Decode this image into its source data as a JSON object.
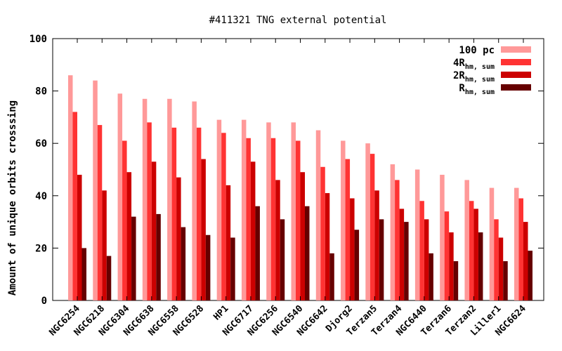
{
  "chart_data": {
    "type": "bar",
    "title": "#411321 TNG external potential",
    "xlabel": "",
    "ylabel": "Amount of unique orbits crosssing",
    "ylim": [
      0,
      100
    ],
    "yticks": [
      0,
      20,
      40,
      60,
      80,
      100
    ],
    "grid": false,
    "legend_position": "top-right",
    "categories": [
      "NGC6254",
      "NGC6218",
      "NGC6304",
      "NGC6638",
      "NGC6558",
      "NGC6528",
      "HP1",
      "NGC6717",
      "NGC6256",
      "NGC6540",
      "NGC6642",
      "Djorg2",
      "Terzan5",
      "Terzan4",
      "NGC6440",
      "Terzan6",
      "Terzan2",
      "Liller1",
      "NGC6624"
    ],
    "series": [
      {
        "name": "100 pc",
        "legend_main": "100 pc",
        "legend_sub": "",
        "color": "#ff9999",
        "values": [
          86,
          84,
          79,
          77,
          77,
          76,
          69,
          69,
          68,
          68,
          65,
          61,
          60,
          52,
          50,
          48,
          46,
          43,
          43
        ]
      },
      {
        "name": "4Rhm, sum",
        "legend_main": "4R",
        "legend_sub": "hm, sum",
        "color": "#ff3333",
        "values": [
          72,
          67,
          61,
          68,
          66,
          66,
          64,
          62,
          62,
          61,
          51,
          54,
          56,
          46,
          38,
          34,
          38,
          31,
          39
        ]
      },
      {
        "name": "2Rhm, sum",
        "legend_main": "2R",
        "legend_sub": "hm, sum",
        "color": "#cc0000",
        "values": [
          48,
          42,
          49,
          53,
          47,
          54,
          44,
          53,
          46,
          49,
          41,
          39,
          42,
          35,
          31,
          26,
          35,
          24,
          30
        ]
      },
      {
        "name": "Rhm, sum",
        "legend_main": "R",
        "legend_sub": "hm, sum",
        "color": "#660000",
        "values": [
          20,
          17,
          32,
          33,
          28,
          25,
          24,
          36,
          31,
          36,
          18,
          27,
          31,
          30,
          18,
          15,
          26,
          15,
          19
        ]
      }
    ]
  }
}
